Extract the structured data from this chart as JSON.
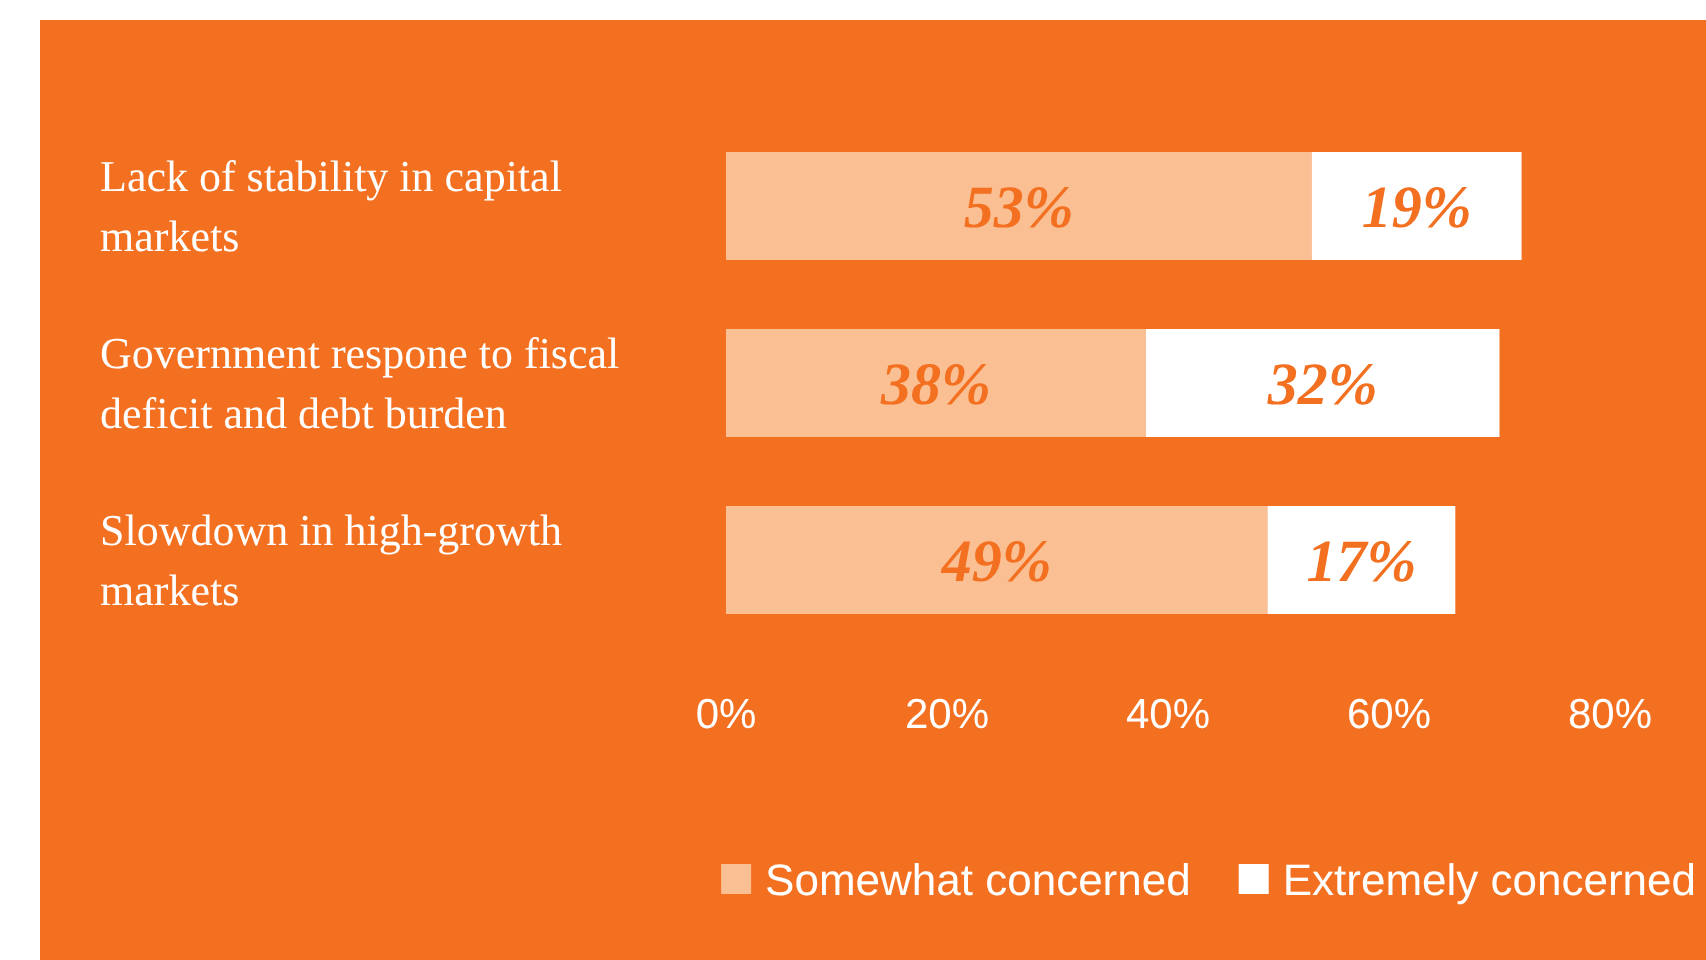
{
  "chart_data": {
    "type": "bar",
    "orientation": "horizontal",
    "stacked": true,
    "categories": [
      "Lack of stability in capital markets",
      "Government respone to fiscal deficit and debt burden",
      "Slowdown in high-growth markets"
    ],
    "series": [
      {
        "name": "Somewhat concerned",
        "color": "#fbbf94",
        "values": [
          53,
          38,
          49
        ],
        "value_labels": [
          "53%",
          "38%",
          "49%"
        ]
      },
      {
        "name": "Extremely concerned",
        "color": "#ffffff",
        "values": [
          19,
          32,
          17
        ],
        "value_labels": [
          "19%",
          "32%",
          "17%"
        ]
      }
    ],
    "xlim": [
      0,
      80
    ],
    "xticks": [
      {
        "value": 0,
        "label": "0%"
      },
      {
        "value": 20,
        "label": "20%"
      },
      {
        "value": 40,
        "label": "40%"
      },
      {
        "value": 60,
        "label": "60%"
      },
      {
        "value": 80,
        "label": "80%"
      }
    ],
    "grid": false,
    "legend": "bottom right"
  }
}
